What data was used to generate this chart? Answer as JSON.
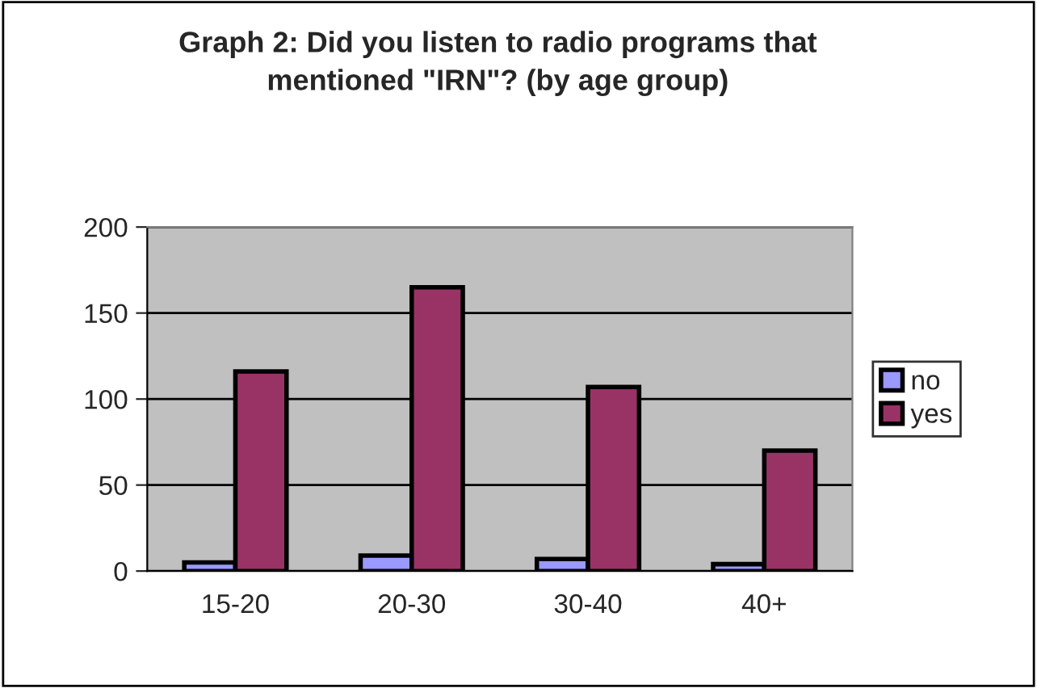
{
  "chart_data": {
    "type": "bar",
    "title": "Graph 2: Did you listen to radio programs that\nmentioned \"IRN\"? (by age group)",
    "categories": [
      "15-20",
      "20-30",
      "30-40",
      "40+"
    ],
    "series": [
      {
        "name": "no",
        "color": "#9999ff",
        "values": [
          5,
          9,
          7,
          4
        ]
      },
      {
        "name": "yes",
        "color": "#993366",
        "values": [
          116,
          165,
          107,
          70
        ]
      }
    ],
    "ylim": [
      0,
      200
    ],
    "yticks": [
      0,
      50,
      100,
      150,
      200
    ],
    "grid": "y",
    "legend": "right"
  }
}
